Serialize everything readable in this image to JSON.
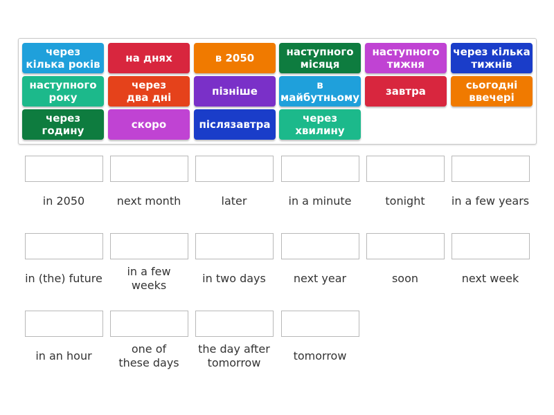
{
  "tiles": [
    {
      "label": "через\nкілька років",
      "color": "#1fa0db"
    },
    {
      "label": "на днях",
      "color": "#d8263e"
    },
    {
      "label": "в 2050",
      "color": "#f07a00"
    },
    {
      "label": "наступного\nмісяця",
      "color": "#0e7c3f"
    },
    {
      "label": "наступного\nтижня",
      "color": "#c043d3"
    },
    {
      "label": "через кілька\nтижнів",
      "color": "#1a3dc9"
    },
    {
      "label": "наступного\nроку",
      "color": "#1cb98b"
    },
    {
      "label": "через\nдва дні",
      "color": "#e5421b"
    },
    {
      "label": "пізніше",
      "color": "#7a30c8"
    },
    {
      "label": "в\nмайбутньому",
      "color": "#1fa0db"
    },
    {
      "label": "завтра",
      "color": "#d8263e"
    },
    {
      "label": "сьогодні\nввечері",
      "color": "#f07a00"
    },
    {
      "label": "через\nгодину",
      "color": "#0e7c3f"
    },
    {
      "label": "скоро",
      "color": "#c043d3"
    },
    {
      "label": "післязавтра",
      "color": "#1a3dc9"
    },
    {
      "label": "через\nхвилину",
      "color": "#1cb98b"
    }
  ],
  "targets": [
    "in 2050",
    "next month",
    "later",
    "in a minute",
    "tonight",
    "in a few years",
    "in (the) future",
    "in a few\nweeks",
    "in two days",
    "next year",
    "soon",
    "next week",
    "in an hour",
    "one of\nthese days",
    "the day after\ntomorrow",
    "tomorrow"
  ]
}
